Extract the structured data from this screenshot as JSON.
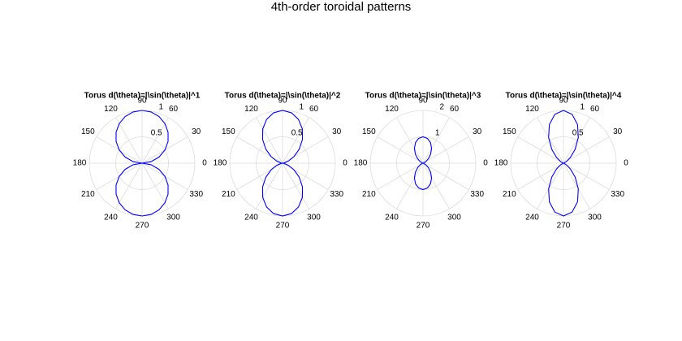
{
  "title": "4th-order toroidal patterns",
  "chart_data": [
    {
      "type": "polar",
      "title": "Torus d(\\theta)=|\\sin(\\theta)|^1",
      "color": "#0000ff",
      "x": [
        0,
        10,
        20,
        30,
        40,
        50,
        60,
        70,
        80,
        90,
        100,
        110,
        120,
        130,
        140,
        150,
        160,
        170,
        180,
        190,
        200,
        210,
        220,
        230,
        240,
        250,
        260,
        270,
        280,
        290,
        300,
        310,
        320,
        330,
        340,
        350,
        360
      ],
      "values": [
        0,
        0.174,
        0.342,
        0.5,
        0.643,
        0.766,
        0.866,
        0.94,
        0.985,
        1,
        0.985,
        0.94,
        0.866,
        0.766,
        0.643,
        0.5,
        0.342,
        0.174,
        0,
        0.174,
        0.342,
        0.5,
        0.643,
        0.766,
        0.866,
        0.94,
        0.985,
        1,
        0.985,
        0.94,
        0.866,
        0.766,
        0.643,
        0.5,
        0.342,
        0.174,
        0
      ],
      "xlim": [
        0,
        360
      ],
      "xticks": [
        0,
        30,
        60,
        90,
        120,
        150,
        180,
        210,
        240,
        270,
        300,
        330
      ],
      "ylim": [
        0,
        1
      ],
      "yticks": [
        0.5,
        1
      ]
    },
    {
      "type": "polar",
      "title": "Torus d(\\theta)=|\\sin(\\theta)|^2",
      "color": "#0000ff",
      "x": [
        0,
        10,
        20,
        30,
        40,
        50,
        60,
        70,
        80,
        90,
        100,
        110,
        120,
        130,
        140,
        150,
        160,
        170,
        180,
        190,
        200,
        210,
        220,
        230,
        240,
        250,
        260,
        270,
        280,
        290,
        300,
        310,
        320,
        330,
        340,
        350,
        360
      ],
      "values": [
        0,
        0.03,
        0.117,
        0.25,
        0.413,
        0.587,
        0.75,
        0.883,
        0.97,
        1,
        0.97,
        0.883,
        0.75,
        0.587,
        0.413,
        0.25,
        0.117,
        0.03,
        0,
        0.03,
        0.117,
        0.25,
        0.413,
        0.587,
        0.75,
        0.883,
        0.97,
        1,
        0.97,
        0.883,
        0.75,
        0.587,
        0.413,
        0.25,
        0.117,
        0.03,
        0
      ],
      "xlim": [
        0,
        360
      ],
      "xticks": [
        0,
        30,
        60,
        90,
        120,
        150,
        180,
        210,
        240,
        270,
        300,
        330
      ],
      "ylim": [
        0,
        1
      ],
      "yticks": [
        0.5,
        1
      ]
    },
    {
      "type": "polar",
      "title": "Torus d(\\theta)=|\\sin(\\theta)|^3",
      "color": "#0000ff",
      "x": [
        0,
        10,
        20,
        30,
        40,
        50,
        60,
        70,
        80,
        90,
        100,
        110,
        120,
        130,
        140,
        150,
        160,
        170,
        180,
        190,
        200,
        210,
        220,
        230,
        240,
        250,
        260,
        270,
        280,
        290,
        300,
        310,
        320,
        330,
        340,
        350,
        360
      ],
      "values": [
        0,
        0.005,
        0.04,
        0.125,
        0.266,
        0.45,
        0.65,
        0.83,
        0.955,
        1,
        0.955,
        0.83,
        0.65,
        0.45,
        0.266,
        0.125,
        0.04,
        0.005,
        0,
        0.005,
        0.04,
        0.125,
        0.266,
        0.45,
        0.65,
        0.83,
        0.955,
        1,
        0.955,
        0.83,
        0.65,
        0.45,
        0.266,
        0.125,
        0.04,
        0.005,
        0
      ],
      "xlim": [
        0,
        360
      ],
      "xticks": [
        0,
        30,
        60,
        90,
        120,
        150,
        180,
        210,
        240,
        270,
        300,
        330
      ],
      "ylim": [
        0,
        2
      ],
      "yticks": [
        1,
        2
      ]
    },
    {
      "type": "polar",
      "title": "Torus d(\\theta)=|\\sin(\\theta)|^4",
      "color": "#0000ff",
      "x": [
        0,
        10,
        20,
        30,
        40,
        50,
        60,
        70,
        80,
        90,
        100,
        110,
        120,
        130,
        140,
        150,
        160,
        170,
        180,
        190,
        200,
        210,
        220,
        230,
        240,
        250,
        260,
        270,
        280,
        290,
        300,
        310,
        320,
        330,
        340,
        350,
        360
      ],
      "values": [
        0,
        0.001,
        0.014,
        0.063,
        0.171,
        0.344,
        0.563,
        0.78,
        0.941,
        1,
        0.941,
        0.78,
        0.563,
        0.344,
        0.171,
        0.063,
        0.014,
        0.001,
        0,
        0.001,
        0.014,
        0.063,
        0.171,
        0.344,
        0.563,
        0.78,
        0.941,
        1,
        0.941,
        0.78,
        0.563,
        0.344,
        0.171,
        0.063,
        0.014,
        0.001,
        0
      ],
      "xlim": [
        0,
        360
      ],
      "xticks": [
        0,
        30,
        60,
        90,
        120,
        150,
        180,
        210,
        240,
        270,
        300,
        330
      ],
      "ylim": [
        0,
        1
      ],
      "yticks": [
        0.5,
        1
      ]
    }
  ]
}
